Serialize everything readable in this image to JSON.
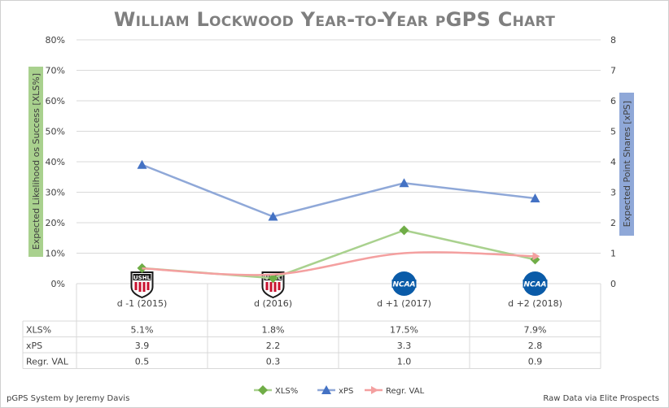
{
  "chart_data": {
    "type": "line",
    "title": "William Lockwood Year-to-Year pGPS Chart",
    "categories": [
      "d -1 (2015)",
      "d (2016)",
      "d +1 (2017)",
      "d +2 (2018)"
    ],
    "category_logos": [
      "USHL",
      "USHL",
      "NCAA",
      "NCAA"
    ],
    "y_left": {
      "label": "Expected Likelihood os Success [XLS%]",
      "min": 0,
      "max": 80,
      "ticks": [
        "0%",
        "10%",
        "20%",
        "30%",
        "40%",
        "50%",
        "60%",
        "70%",
        "80%"
      ]
    },
    "y_right": {
      "label": "Expected Point Shares [xPS]",
      "min": 0,
      "max": 8,
      "ticks": [
        "0",
        "1",
        "2",
        "3",
        "4",
        "5",
        "6",
        "7",
        "8"
      ]
    },
    "series": [
      {
        "name": "XLS%",
        "axis": "left",
        "values": [
          5.1,
          1.8,
          17.5,
          7.9
        ],
        "color": "#a9d18e",
        "marker": "diamond",
        "color_marker": "#70ad47",
        "smooth": false
      },
      {
        "name": "xPS",
        "axis": "right",
        "values": [
          3.9,
          2.2,
          3.3,
          2.8
        ],
        "color": "#8fa8d8",
        "marker": "triangle",
        "color_marker": "#4472c4",
        "smooth": false
      },
      {
        "name": "Regr. VAL",
        "axis": "right",
        "values": [
          0.5,
          0.3,
          1.0,
          0.9
        ],
        "color": "#f4a0a0",
        "marker": "arrow",
        "color_marker": "#f4a0a0",
        "smooth": true
      }
    ],
    "table": {
      "rows": [
        {
          "label": "XLS%",
          "cells": [
            "5.1%",
            "1.8%",
            "17.5%",
            "7.9%"
          ]
        },
        {
          "label": "xPS",
          "cells": [
            "3.9",
            "2.2",
            "3.3",
            "2.8"
          ]
        },
        {
          "label": "Regr. VAL",
          "cells": [
            "0.5",
            "0.3",
            "1.0",
            "0.9"
          ]
        }
      ]
    },
    "legend_position": "bottom",
    "grid": true
  },
  "footer": {
    "left": "pGPS System by Jeremy Davis",
    "right": "Raw Data via Elite Prospects"
  },
  "colors": {
    "title": "#7f7f7f",
    "grid": "#d9d9d9",
    "ushl_red": "#c8102e",
    "ncaa_blue": "#0a5ba8"
  }
}
